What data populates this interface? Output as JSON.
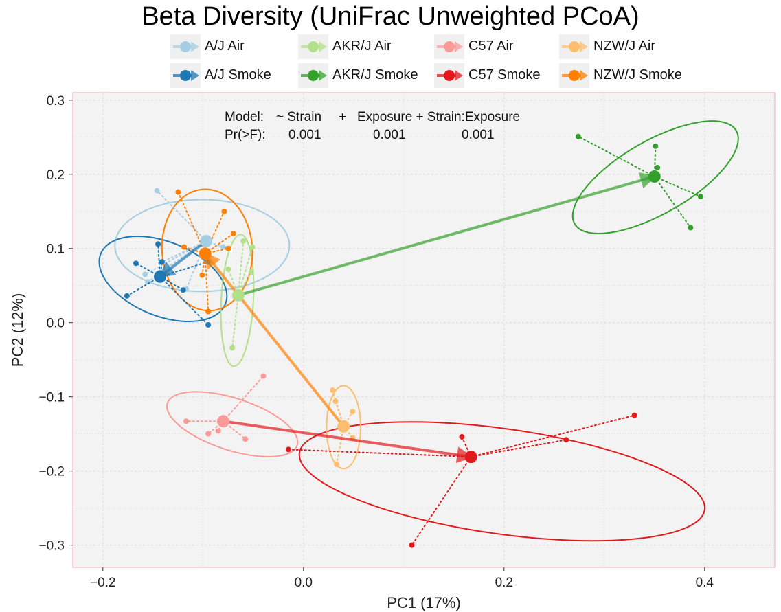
{
  "chart_data": {
    "type": "scatter",
    "title": "Beta Diversity (UniFrac Unweighted PCoA)",
    "xlabel": "PC1 (17%)",
    "ylabel": "PC2 (12%)",
    "xlim": [
      -0.23,
      0.47
    ],
    "ylim": [
      -0.33,
      0.31
    ],
    "xticks": [
      -0.2,
      0.0,
      0.2,
      0.4
    ],
    "xtick_labels": [
      "−0.2",
      "0.0",
      "0.2",
      "0.4"
    ],
    "yticks": [
      0.3,
      0.2,
      0.1,
      0.0,
      -0.1,
      -0.2,
      -0.3
    ],
    "ytick_labels": [
      "0.3",
      "0.2",
      "0.1",
      "0.0",
      "−0.1",
      "−0.2",
      "−0.3"
    ],
    "grid": true,
    "legend_position": "top",
    "annotation": {
      "model_label": "Model:",
      "model_terms": [
        "~ Strain",
        "+",
        "Exposure + Strain:Exposure"
      ],
      "p_label": "Pr(>F):",
      "p_values": [
        "0.001",
        "0.001",
        "0.001"
      ]
    },
    "legend": [
      {
        "strain": "A/J",
        "exposure": "Air",
        "color": "#a6cee3"
      },
      {
        "strain": "A/J",
        "exposure": "Smoke",
        "color": "#1f78b4"
      },
      {
        "strain": "AKR/J",
        "exposure": "Air",
        "color": "#b2df8a"
      },
      {
        "strain": "AKR/J",
        "exposure": "Smoke",
        "color": "#33a02c"
      },
      {
        "strain": "C57",
        "exposure": "Air",
        "color": "#fb9a99"
      },
      {
        "strain": "C57",
        "exposure": "Smoke",
        "color": "#e31a1c"
      },
      {
        "strain": "NZW/J",
        "exposure": "Air",
        "color": "#fdbf6f"
      },
      {
        "strain": "NZW/J",
        "exposure": "Smoke",
        "color": "#ff7f00"
      }
    ],
    "series": [
      {
        "name": "A/J Air",
        "color": "#a6cee3",
        "centroid": [
          -0.097,
          0.11
        ],
        "points": [
          [
            -0.142,
            0.081
          ],
          [
            -0.143,
            0.068
          ],
          [
            -0.158,
            0.065
          ],
          [
            -0.155,
            0.055
          ],
          [
            -0.117,
            0.045
          ],
          [
            -0.146,
            0.178
          ],
          [
            -0.08,
            0.102
          ]
        ],
        "ellipse": {
          "center": [
            -0.101,
            0.104
          ],
          "rx": 0.087,
          "ry": 0.062,
          "angle": 0
        }
      },
      {
        "name": "A/J Smoke",
        "color": "#1f78b4",
        "centroid": [
          -0.143,
          0.062
        ],
        "points": [
          [
            -0.167,
            0.08
          ],
          [
            -0.141,
            0.082
          ],
          [
            -0.145,
            0.106
          ],
          [
            -0.176,
            0.036
          ],
          [
            -0.095,
            -0.003
          ],
          [
            -0.12,
            0.044
          ],
          [
            -0.095,
            0.082
          ]
        ],
        "ellipse": {
          "center": [
            -0.14,
            0.059
          ],
          "rx": 0.067,
          "ry": 0.05,
          "angle": -22
        }
      },
      {
        "name": "AKR/J Air",
        "color": "#b2df8a",
        "centroid": [
          -0.065,
          0.037
        ],
        "points": [
          [
            -0.075,
            0.072
          ],
          [
            -0.06,
            0.11
          ],
          [
            -0.051,
            0.102
          ],
          [
            -0.052,
            0.068
          ],
          [
            -0.071,
            -0.034
          ]
        ],
        "ellipse": {
          "center": [
            -0.066,
            0.03
          ],
          "rx": 0.016,
          "ry": 0.089,
          "angle": -3
        }
      },
      {
        "name": "AKR/J Smoke",
        "color": "#33a02c",
        "centroid": [
          0.35,
          0.197
        ],
        "points": [
          [
            0.274,
            0.251
          ],
          [
            0.351,
            0.238
          ],
          [
            0.353,
            0.209
          ],
          [
            0.396,
            0.17
          ],
          [
            0.386,
            0.128
          ]
        ],
        "ellipse": {
          "center": [
            0.351,
            0.196
          ],
          "rx": 0.093,
          "ry": 0.049,
          "angle": 30
        }
      },
      {
        "name": "C57 Air",
        "color": "#fb9a99",
        "centroid": [
          -0.08,
          -0.133
        ],
        "points": [
          [
            -0.117,
            -0.133
          ],
          [
            -0.095,
            -0.15
          ],
          [
            -0.085,
            -0.146
          ],
          [
            -0.058,
            -0.157
          ],
          [
            -0.04,
            -0.072
          ]
        ],
        "ellipse": {
          "center": [
            -0.071,
            -0.137
          ],
          "rx": 0.068,
          "ry": 0.035,
          "angle": -18
        }
      },
      {
        "name": "C57 Smoke",
        "color": "#e31a1c",
        "centroid": [
          0.167,
          -0.181
        ],
        "points": [
          [
            -0.015,
            -0.171
          ],
          [
            0.158,
            -0.154
          ],
          [
            0.262,
            -0.158
          ],
          [
            0.33,
            -0.125
          ],
          [
            0.108,
            -0.3
          ]
        ],
        "ellipse": {
          "center": [
            0.198,
            -0.214
          ],
          "rx": 0.204,
          "ry": 0.071,
          "angle": -8
        }
      },
      {
        "name": "NZW/J Air",
        "color": "#fdbf6f",
        "centroid": [
          0.04,
          -0.14
        ],
        "points": [
          [
            0.029,
            -0.091
          ],
          [
            0.049,
            -0.12
          ],
          [
            0.049,
            -0.155
          ],
          [
            0.033,
            -0.191
          ],
          [
            0.032,
            -0.106
          ]
        ],
        "ellipse": {
          "center": [
            0.04,
            -0.141
          ],
          "rx": 0.017,
          "ry": 0.056,
          "angle": 0
        }
      },
      {
        "name": "NZW/J Smoke",
        "color": "#ff7f00",
        "centroid": [
          -0.098,
          0.093
        ],
        "points": [
          [
            -0.125,
            0.176
          ],
          [
            -0.079,
            0.15
          ],
          [
            -0.075,
            0.1
          ],
          [
            -0.119,
            0.102
          ],
          [
            -0.101,
            0.064
          ],
          [
            -0.095,
            0.015
          ],
          [
            -0.07,
            0.12
          ]
        ],
        "ellipse": {
          "center": [
            -0.096,
            0.098
          ],
          "rx": 0.045,
          "ry": 0.082,
          "angle": 4
        }
      }
    ],
    "arrows": [
      {
        "from": [
          -0.097,
          0.11
        ],
        "to": [
          -0.143,
          0.062
        ],
        "color": "#1f78b4"
      },
      {
        "from": [
          -0.065,
          0.037
        ],
        "to": [
          0.35,
          0.197
        ],
        "color": "#33a02c"
      },
      {
        "from": [
          -0.08,
          -0.133
        ],
        "to": [
          0.167,
          -0.181
        ],
        "color": "#e31a1c"
      },
      {
        "from": [
          0.04,
          -0.14
        ],
        "to": [
          -0.098,
          0.093
        ],
        "color": "#ff7f00"
      }
    ]
  }
}
